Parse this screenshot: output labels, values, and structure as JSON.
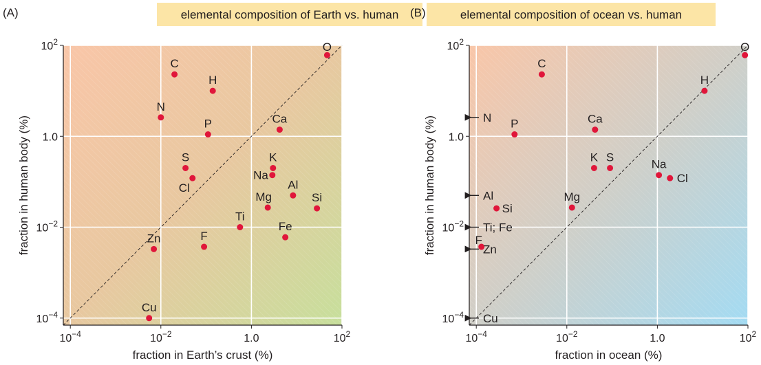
{
  "chart_data": [
    {
      "type": "scatter",
      "panel_label": "(A)",
      "title": "elemental composition of Earth vs. human",
      "xlabel": "fraction in Earth’s crust (%)",
      "ylabel": "fraction in human body (%)",
      "x_scale": "log",
      "y_scale": "log",
      "xlim": [
        7e-05,
        100
      ],
      "ylim": [
        7e-05,
        100
      ],
      "x_ticks": [
        {
          "base": "10",
          "exp": "−4",
          "value": 0.0001
        },
        {
          "base": "10",
          "exp": "−2",
          "value": 0.01
        },
        {
          "base": "1.0",
          "exp": "",
          "value": 1
        },
        {
          "base": "10",
          "exp": "2",
          "value": 100
        }
      ],
      "y_ticks": [
        {
          "base": "10",
          "exp": "−4",
          "value": 0.0001
        },
        {
          "base": "10",
          "exp": "−2",
          "value": 0.01
        },
        {
          "base": "1.0",
          "exp": "",
          "value": 1
        },
        {
          "base": "10",
          "exp": "2",
          "value": 100
        }
      ],
      "grid": true,
      "diagonal": "y = x (dashed)",
      "background_colors": [
        "#f8c9ac",
        "#cbdea0"
      ],
      "point_color": "#e0163a",
      "points": [
        {
          "label": "O",
          "x": 47,
          "y": 61
        },
        {
          "label": "C",
          "x": 0.02,
          "y": 23
        },
        {
          "label": "H",
          "x": 0.14,
          "y": 10
        },
        {
          "label": "N",
          "x": 0.01,
          "y": 2.6
        },
        {
          "label": "P",
          "x": 0.11,
          "y": 1.1
        },
        {
          "label": "Ca",
          "x": 4.2,
          "y": 1.4
        },
        {
          "label": "S",
          "x": 0.035,
          "y": 0.2
        },
        {
          "label": "K",
          "x": 3,
          "y": 0.2
        },
        {
          "label": "Na",
          "x": 2.9,
          "y": 0.14
        },
        {
          "label": "Cl",
          "x": 0.05,
          "y": 0.12
        },
        {
          "label": "Al",
          "x": 8.3,
          "y": 0.05
        },
        {
          "label": "Mg",
          "x": 2.3,
          "y": 0.027
        },
        {
          "label": "Si",
          "x": 28,
          "y": 0.026
        },
        {
          "label": "Ti",
          "x": 0.56,
          "y": 0.01
        },
        {
          "label": "Fe",
          "x": 5.6,
          "y": 0.006
        },
        {
          "label": "Zn",
          "x": 0.007,
          "y": 0.0033
        },
        {
          "label": "F",
          "x": 0.09,
          "y": 0.0037
        },
        {
          "label": "Cu",
          "x": 0.0055,
          "y": 0.0001
        }
      ],
      "offscale_points": []
    },
    {
      "type": "scatter",
      "panel_label": "(B)",
      "title": "elemental composition of ocean vs. human",
      "xlabel": "fraction in ocean (%)",
      "ylabel": "fraction in human body (%)",
      "x_scale": "log",
      "y_scale": "log",
      "xlim": [
        7e-05,
        100
      ],
      "ylim": [
        7e-05,
        100
      ],
      "x_ticks": [
        {
          "base": "10",
          "exp": "−4",
          "value": 0.0001
        },
        {
          "base": "10",
          "exp": "−2",
          "value": 0.01
        },
        {
          "base": "1.0",
          "exp": "",
          "value": 1
        },
        {
          "base": "10",
          "exp": "2",
          "value": 100
        }
      ],
      "y_ticks": [
        {
          "base": "10",
          "exp": "−4",
          "value": 0.0001
        },
        {
          "base": "10",
          "exp": "−2",
          "value": 0.01
        },
        {
          "base": "1.0",
          "exp": "",
          "value": 1
        },
        {
          "base": "10",
          "exp": "2",
          "value": 100
        }
      ],
      "grid": true,
      "diagonal": "y = x (dashed)",
      "background_colors": [
        "#f8c9ac",
        "#a7dcf2"
      ],
      "point_color": "#e0163a",
      "points": [
        {
          "label": "O",
          "x": 86,
          "y": 61
        },
        {
          "label": "H",
          "x": 11,
          "y": 10
        },
        {
          "label": "C",
          "x": 0.0028,
          "y": 23
        },
        {
          "label": "Ca",
          "x": 0.042,
          "y": 1.4
        },
        {
          "label": "P",
          "x": 0.0007,
          "y": 1.1
        },
        {
          "label": "K",
          "x": 0.04,
          "y": 0.2
        },
        {
          "label": "S",
          "x": 0.09,
          "y": 0.2
        },
        {
          "label": "Na",
          "x": 1.08,
          "y": 0.14
        },
        {
          "label": "Cl",
          "x": 1.9,
          "y": 0.12
        },
        {
          "label": "Mg",
          "x": 0.013,
          "y": 0.027
        },
        {
          "label": "Si",
          "x": 0.00028,
          "y": 0.026
        },
        {
          "label": "F",
          "x": 0.00013,
          "y": 0.0037
        }
      ],
      "offscale_points": [
        {
          "label": "N",
          "y": 2.6
        },
        {
          "label": "Al",
          "y": 0.05
        },
        {
          "label": "Ti; Fe",
          "y": 0.01
        },
        {
          "label": "Zn",
          "y": 0.0033
        },
        {
          "label": "Cu",
          "y": 0.0001
        }
      ]
    }
  ]
}
